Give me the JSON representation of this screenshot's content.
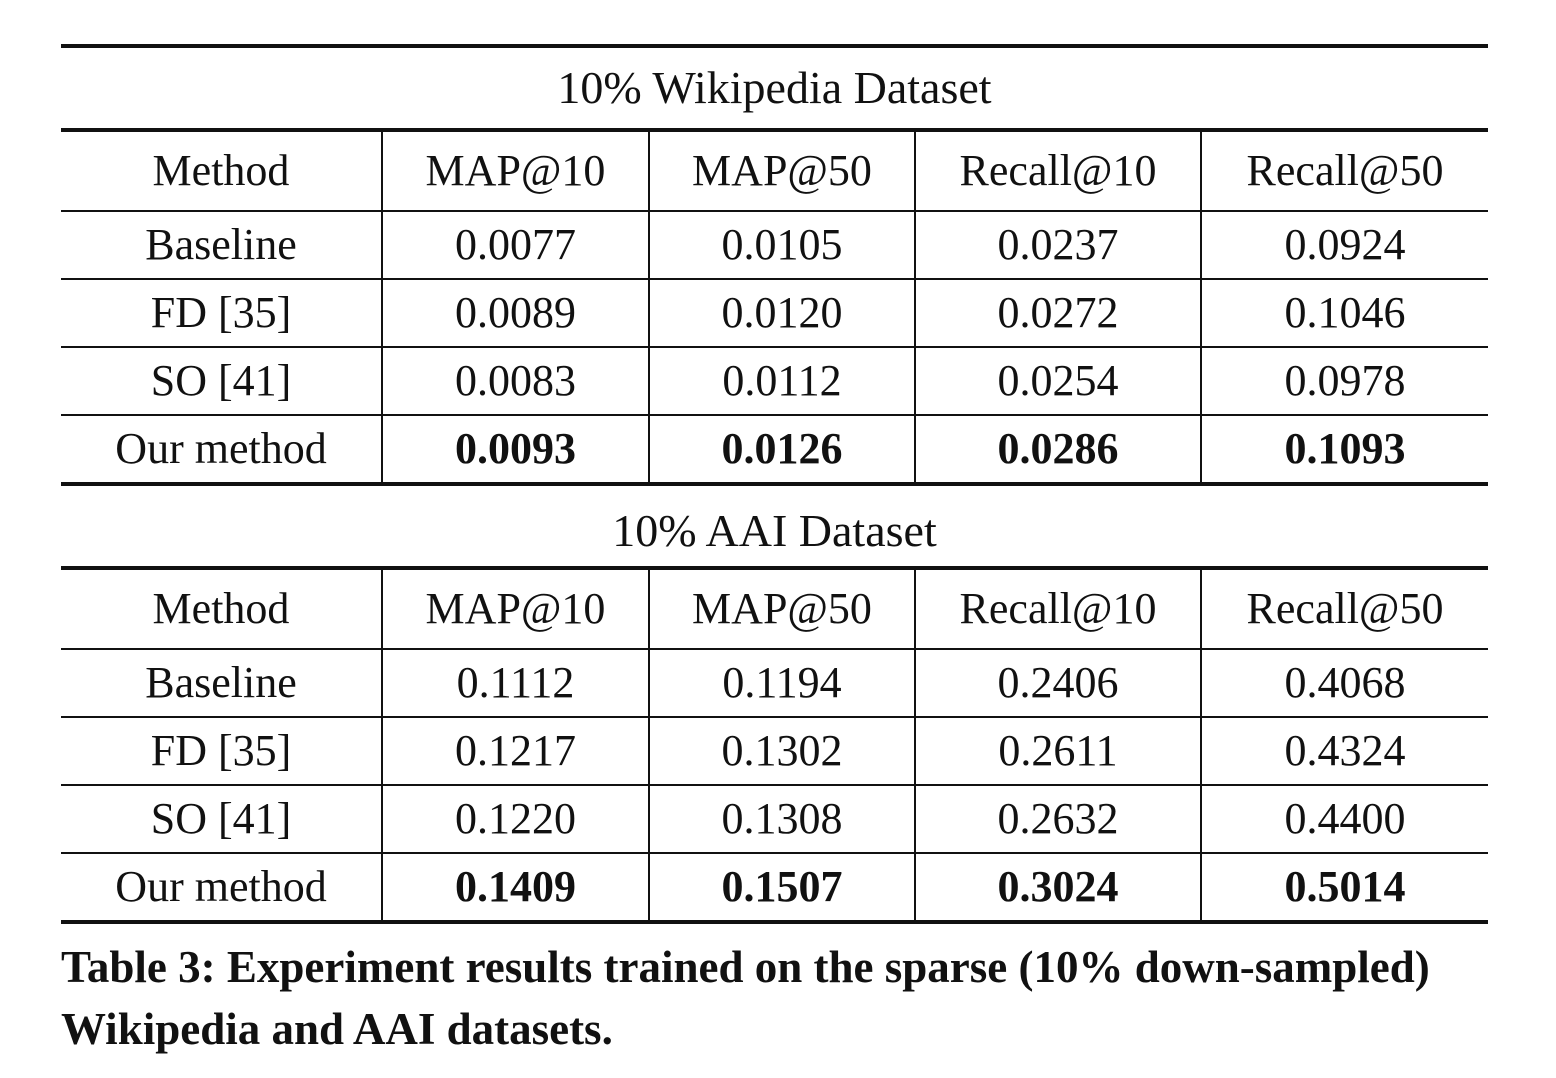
{
  "headers": [
    "Method",
    "MAP@10",
    "MAP@50",
    "Recall@10",
    "Recall@50"
  ],
  "sections": [
    {
      "title": "10% Wikipedia Dataset",
      "rows": [
        {
          "method": "Baseline",
          "values": [
            "0.0077",
            "0.0105",
            "0.0237",
            "0.0924"
          ],
          "bold": false
        },
        {
          "method": "FD [35]",
          "values": [
            "0.0089",
            "0.0120",
            "0.0272",
            "0.1046"
          ],
          "bold": false
        },
        {
          "method": "SO [41]",
          "values": [
            "0.0083",
            "0.0112",
            "0.0254",
            "0.0978"
          ],
          "bold": false
        },
        {
          "method": "Our method",
          "values": [
            "0.0093",
            "0.0126",
            "0.0286",
            "0.1093"
          ],
          "bold": true
        }
      ]
    },
    {
      "title": "10% AAI Dataset",
      "rows": [
        {
          "method": "Baseline",
          "values": [
            "0.1112",
            "0.1194",
            "0.2406",
            "0.4068"
          ],
          "bold": false
        },
        {
          "method": "FD [35]",
          "values": [
            "0.1217",
            "0.1302",
            "0.2611",
            "0.4324"
          ],
          "bold": false
        },
        {
          "method": "SO [41]",
          "values": [
            "0.1220",
            "0.1308",
            "0.2632",
            "0.4400"
          ],
          "bold": false
        },
        {
          "method": "Our method",
          "values": [
            "0.1409",
            "0.1507",
            "0.3024",
            "0.5014"
          ],
          "bold": true
        }
      ]
    }
  ],
  "caption": "Table 3: Experiment results trained on the sparse (10% down-sampled) Wikipedia and AAI datasets."
}
